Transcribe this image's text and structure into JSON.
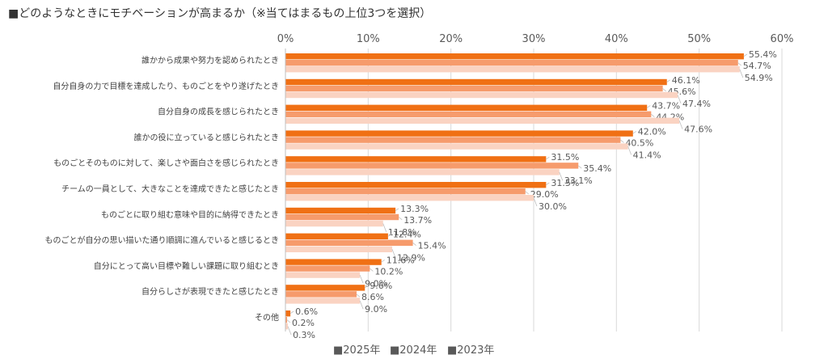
{
  "title": "■どのようなときにモチベーションが高まるか（※当てはまるもの上位3つを選択）",
  "chart_data": {
    "type": "bar",
    "orientation": "horizontal",
    "title": "■どのようなときにモチベーションが高まるか（※当てはまるもの上位3つを選択）",
    "xlim": [
      0,
      60
    ],
    "ticks": [
      "0%",
      "10%",
      "20%",
      "30%",
      "40%",
      "50%",
      "60%"
    ],
    "tick_values": [
      0,
      10,
      20,
      30,
      40,
      50,
      60
    ],
    "categories": [
      "誰かから成果や努力を認められたとき",
      "自分自身の力で目標を達成したり、ものごとをやり遂げたとき",
      "自分自身の成長を感じられたとき",
      "誰かの役に立っていると感じられたとき",
      "ものごとそのものに対して、楽しさや面白さを感じられたとき",
      "チームの一員として、大きなことを達成できたと感じたとき",
      "ものごとに取り組む意味や目的に納得できたとき",
      "ものごとが自分の思い描いた通り順調に進んでいると感じるとき",
      "自分にとって高い目標や難しい課題に取り組むとき",
      "自分らしさが表現できたと感じたとき",
      "その他"
    ],
    "series": [
      {
        "name": "2025年",
        "color": "#F07014",
        "values": [
          55.4,
          46.1,
          43.7,
          42.0,
          31.5,
          31.5,
          13.3,
          12.4,
          11.6,
          9.6,
          0.6
        ],
        "labels": [
          "55.4%",
          "46.1%",
          "43.7%",
          "42.0%",
          "31.5%",
          "31.5%",
          "13.3%",
          "12.4%",
          "11.6%",
          "9.6%",
          "0.6%"
        ]
      },
      {
        "name": "2024年",
        "color": "#F69B6C",
        "values": [
          54.7,
          45.6,
          44.2,
          40.5,
          35.4,
          29.0,
          13.7,
          15.4,
          10.2,
          8.6,
          0.2
        ],
        "labels": [
          "54.7%",
          "45.6%",
          "44.2%",
          "40.5%",
          "35.4%",
          "29.0%",
          "13.7%",
          "15.4%",
          "10.2%",
          "8.6%",
          "0.2%"
        ]
      },
      {
        "name": "2023年",
        "color": "#FAD3C2",
        "values": [
          54.9,
          47.4,
          47.6,
          41.4,
          33.1,
          30.0,
          11.8,
          12.9,
          9.0,
          9.0,
          0.3
        ],
        "labels": [
          "54.9%",
          "47.4%",
          "47.6%",
          "41.4%",
          "33.1%",
          "30.0%",
          "11.8%",
          "12.9%",
          "9.0%",
          "9.0%",
          "0.3%"
        ]
      }
    ],
    "legend": {
      "position": "bottom-center",
      "entries": [
        "■2025年",
        "■2024年",
        "■2023年"
      ]
    }
  }
}
